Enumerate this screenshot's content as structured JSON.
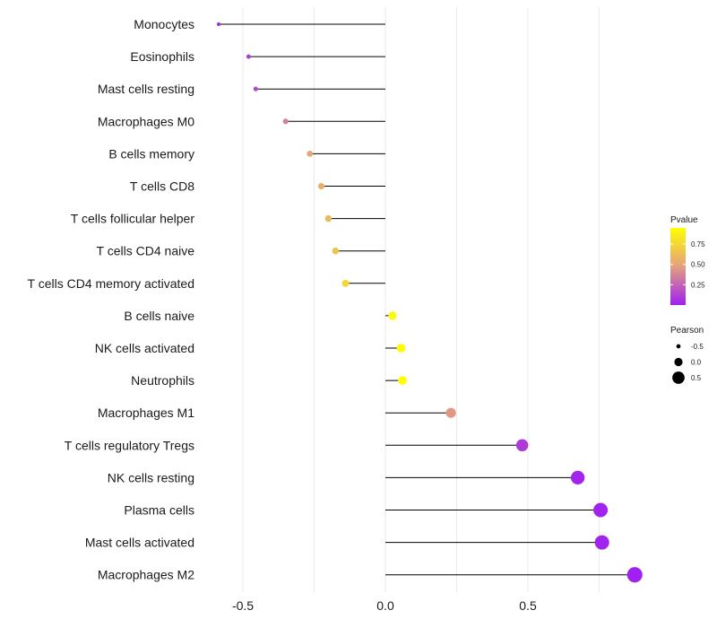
{
  "chart_data": {
    "type": "lollipop",
    "title": "",
    "xlabel": "",
    "ylabel": "",
    "xlim": [
      -0.6,
      0.9
    ],
    "x_ticks": [
      -0.5,
      0.0,
      0.5
    ],
    "x_tick_labels": [
      "-0.5",
      "0.0",
      "0.5"
    ],
    "grid": true,
    "baseline": 0,
    "categories": [
      "Monocytes",
      "Eosinophils",
      "Mast cells resting",
      "Macrophages M0",
      "B cells memory",
      "T cells CD8",
      "T cells follicular helper",
      "T cells CD4 naive",
      "T cells CD4 memory activated",
      "B cells naive",
      "NK cells activated",
      "Neutrophils",
      "Macrophages M1",
      "T cells regulatory  Tregs ",
      "NK cells resting",
      "Plasma cells",
      "Mast cells activated",
      "Macrophages M2"
    ],
    "pearson": [
      -0.585,
      -0.48,
      -0.455,
      -0.35,
      -0.265,
      -0.225,
      -0.2,
      -0.175,
      -0.14,
      0.025,
      0.055,
      0.06,
      0.23,
      0.48,
      0.675,
      0.755,
      0.76,
      0.875
    ],
    "pvalue": [
      0.02,
      0.1,
      0.13,
      0.35,
      0.5,
      0.55,
      0.6,
      0.65,
      0.75,
      0.92,
      0.93,
      0.94,
      0.45,
      0.1,
      0.02,
      0.01,
      0.01,
      0.001
    ],
    "legend": {
      "color": {
        "title": "Pvalue",
        "ticks": [
          0.75,
          0.5,
          0.25
        ],
        "tick_labels": [
          "0.75",
          "0.50",
          "0.25"
        ],
        "range": [
          0.0,
          0.95
        ],
        "low_color": "#A020F0",
        "mid_color": "#E4A07F",
        "high_color": "#FFFF00"
      },
      "size": {
        "title": "Pearson",
        "values": [
          -0.5,
          0.0,
          0.5
        ],
        "labels": [
          "-0.5",
          "0.0",
          "0.5"
        ]
      },
      "placement": "right"
    }
  }
}
